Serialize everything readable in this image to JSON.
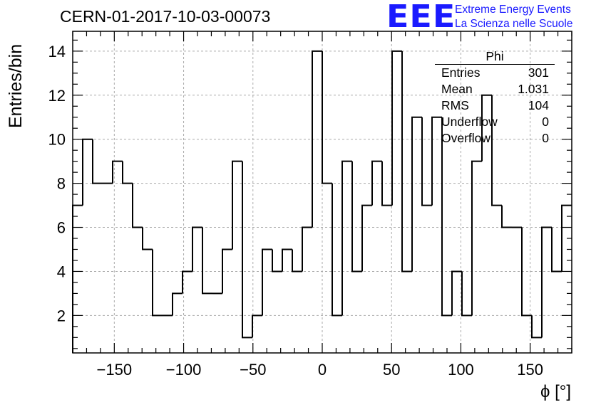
{
  "title": "CERN-01-2017-10-03-00073",
  "logo": {
    "mark": "EEE",
    "line1": "Extreme Energy Events",
    "line2": "La Scienza nelle Scuole"
  },
  "stats_box": {
    "name": "Phi",
    "rows": [
      {
        "label": "Entries",
        "value": "301"
      },
      {
        "label": "Mean",
        "value": "1.031"
      },
      {
        "label": "RMS",
        "value": "104"
      },
      {
        "label": "Underflow",
        "value": "0"
      },
      {
        "label": "Overflow",
        "value": "0"
      }
    ]
  },
  "colors": {
    "histogram_line": "#000000",
    "grid": "#aaaaaa",
    "logo": "#1a1aff"
  },
  "chart_data": {
    "type": "bar",
    "subtype": "step-histogram",
    "xlabel": "ϕ [°]",
    "ylabel": "Entries/bin",
    "xlim": [
      -180,
      180
    ],
    "ylim": [
      0.3,
      14.9
    ],
    "bin_width": 7.2,
    "bin_low_edges": [
      -180,
      -172.8,
      -165.6,
      -158.4,
      -151.2,
      -144,
      -136.8,
      -129.6,
      -122.4,
      -115.2,
      -108,
      -100.8,
      -93.6,
      -86.4,
      -79.2,
      -72,
      -64.8,
      -57.6,
      -50.4,
      -43.2,
      -36,
      -28.8,
      -21.6,
      -14.4,
      -7.2,
      0,
      7.2,
      14.4,
      21.6,
      28.8,
      36,
      43.2,
      50.4,
      57.6,
      64.8,
      72,
      79.2,
      86.4,
      93.6,
      100.8,
      108,
      115.2,
      122.4,
      129.6,
      136.8,
      144,
      151.2,
      158.4,
      165.6,
      172.8
    ],
    "values": [
      7,
      10,
      8,
      8,
      9,
      8,
      6,
      5,
      2,
      2,
      3,
      4,
      6,
      3,
      3,
      5,
      9,
      1,
      2,
      5,
      4,
      5,
      4,
      6,
      14,
      8,
      2,
      9,
      4,
      7,
      9,
      7,
      14,
      4,
      11,
      7,
      11,
      2,
      4,
      2,
      9,
      12,
      7,
      6,
      6,
      2,
      1,
      6,
      4,
      7
    ],
    "x_ticks": [
      -150,
      -100,
      -50,
      0,
      50,
      100,
      150
    ],
    "x_tick_labels": [
      "−150",
      "−100",
      "−50",
      "0",
      "50",
      "100",
      "150"
    ],
    "y_ticks": [
      2,
      4,
      6,
      8,
      10,
      12,
      14
    ],
    "y_tick_labels": [
      "2",
      "4",
      "6",
      "8",
      "10",
      "12",
      "14"
    ],
    "grid": true,
    "legend": "none"
  }
}
